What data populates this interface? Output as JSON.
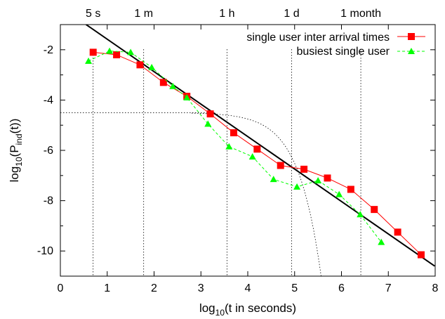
{
  "chart_data": {
    "type": "line",
    "title": "",
    "xlabel": "log10(t in seconds)",
    "ylabel": "log10(Pind(t))",
    "xlim": [
      0,
      8
    ],
    "ylim": [
      -11,
      -1
    ],
    "x_ticks": [
      "0",
      "1",
      "2",
      "3",
      "4",
      "5",
      "6",
      "7",
      "8"
    ],
    "y_ticks": [
      "-2",
      "-4",
      "-6",
      "-8",
      "-10"
    ],
    "top_ticks": [
      {
        "label": "5 s",
        "x": 0.699
      },
      {
        "label": "1 m",
        "x": 1.778
      },
      {
        "label": "1 h",
        "x": 3.556
      },
      {
        "label": "1 d",
        "x": 4.937
      },
      {
        "label": "1 month",
        "x": 6.413
      }
    ],
    "grid": false,
    "legend_position": "top-right",
    "series": [
      {
        "name": "single user inter arrival times",
        "color": "#ff0000",
        "marker": "square",
        "line_style": "solid",
        "x": [
          0.7,
          1.2,
          1.7,
          2.2,
          2.7,
          3.2,
          3.7,
          4.2,
          4.7,
          5.2,
          5.7,
          6.2,
          6.7,
          7.2,
          7.7
        ],
        "y": [
          -2.1,
          -2.2,
          -2.6,
          -3.3,
          -3.85,
          -4.55,
          -5.3,
          -5.95,
          -6.6,
          -6.75,
          -7.1,
          -7.55,
          -8.35,
          -9.25,
          -10.15
        ]
      },
      {
        "name": "busiest single user",
        "color": "#00ff00",
        "marker": "triangle",
        "line_style": "dashed",
        "x": [
          0.6,
          1.05,
          1.5,
          1.95,
          2.4,
          2.7,
          3.15,
          3.6,
          4.1,
          4.55,
          5.05,
          5.5,
          5.95,
          6.4,
          6.85
        ],
        "y": [
          -2.45,
          -2.05,
          -2.1,
          -2.7,
          -3.45,
          -3.9,
          -4.95,
          -5.85,
          -6.25,
          -7.15,
          -7.45,
          -7.2,
          -7.75,
          -8.55,
          -9.65
        ]
      }
    ],
    "fit_line": {
      "color": "#000000",
      "x": [
        0.55,
        7.99
      ],
      "y": [
        -1.0,
        -10.6
      ]
    },
    "reference_lines": {
      "horizontal_y": -4.5,
      "horizontal_x_range": [
        0,
        3.3
      ],
      "vertical_x": [
        0.699,
        1.778,
        3.556,
        4.937,
        6.413
      ],
      "cutoff_curve": {
        "x_start": 2.8,
        "x_end": 5.62,
        "y_level": -4.5
      }
    }
  }
}
